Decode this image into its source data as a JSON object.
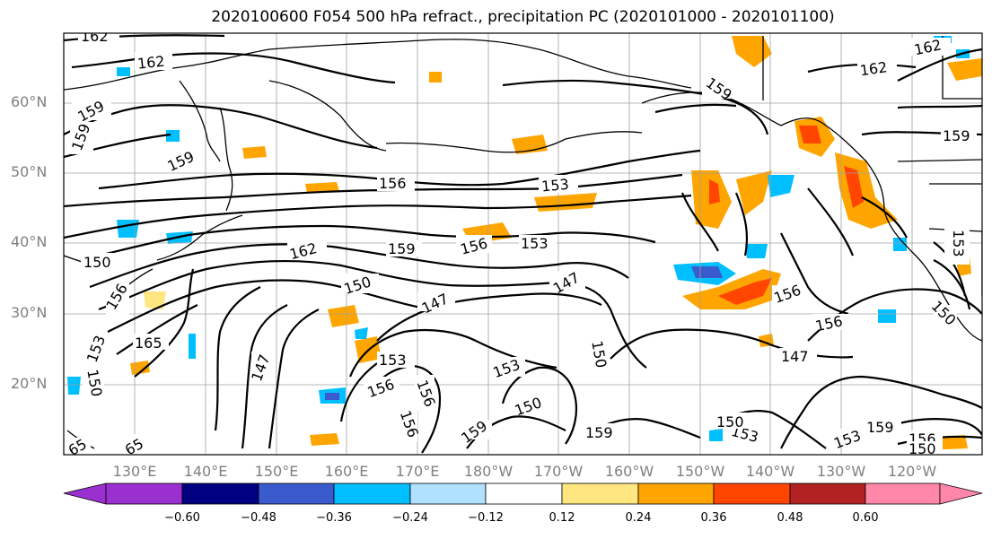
{
  "title": "2020100600 F054 500 hPa refract., precipitation PC (2020101000 - 2020101100)",
  "lat_labels": [
    "60°N",
    "50°N",
    "40°N",
    "30°N",
    "20°N"
  ],
  "lon_labels": [
    "130°E",
    "140°E",
    "150°E",
    "160°E",
    "170°E",
    "180°W",
    "170°W",
    "160°W",
    "150°W",
    "140°W",
    "130°W",
    "120°W"
  ],
  "colorbar": {
    "ticks": [
      "−0.60",
      "−0.48",
      "−0.36",
      "−0.24",
      "−0.12",
      "0.12",
      "0.24",
      "0.36",
      "0.48",
      "0.60"
    ],
    "colors": [
      "#9b30d0",
      "#000080",
      "#3a5bcd",
      "#00bfff",
      "#b0e2ff",
      "#ffffff",
      "#ffe680",
      "#ffa500",
      "#ff4500",
      "#b22222",
      "#ff88aa"
    ]
  },
  "contour_labels": [
    "162",
    "162",
    "162",
    "162",
    "159",
    "159",
    "159",
    "159",
    "159",
    "159",
    "159",
    "159",
    "156",
    "156",
    "156",
    "156",
    "156",
    "156",
    "156",
    "153",
    "153",
    "153",
    "153",
    "153",
    "153",
    "153",
    "150",
    "150",
    "150",
    "150",
    "150",
    "150",
    "147",
    "147",
    "147",
    "147",
    "165",
    "65",
    "65",
    "162",
    "159",
    "156",
    "153",
    "150",
    "156",
    "150"
  ]
}
